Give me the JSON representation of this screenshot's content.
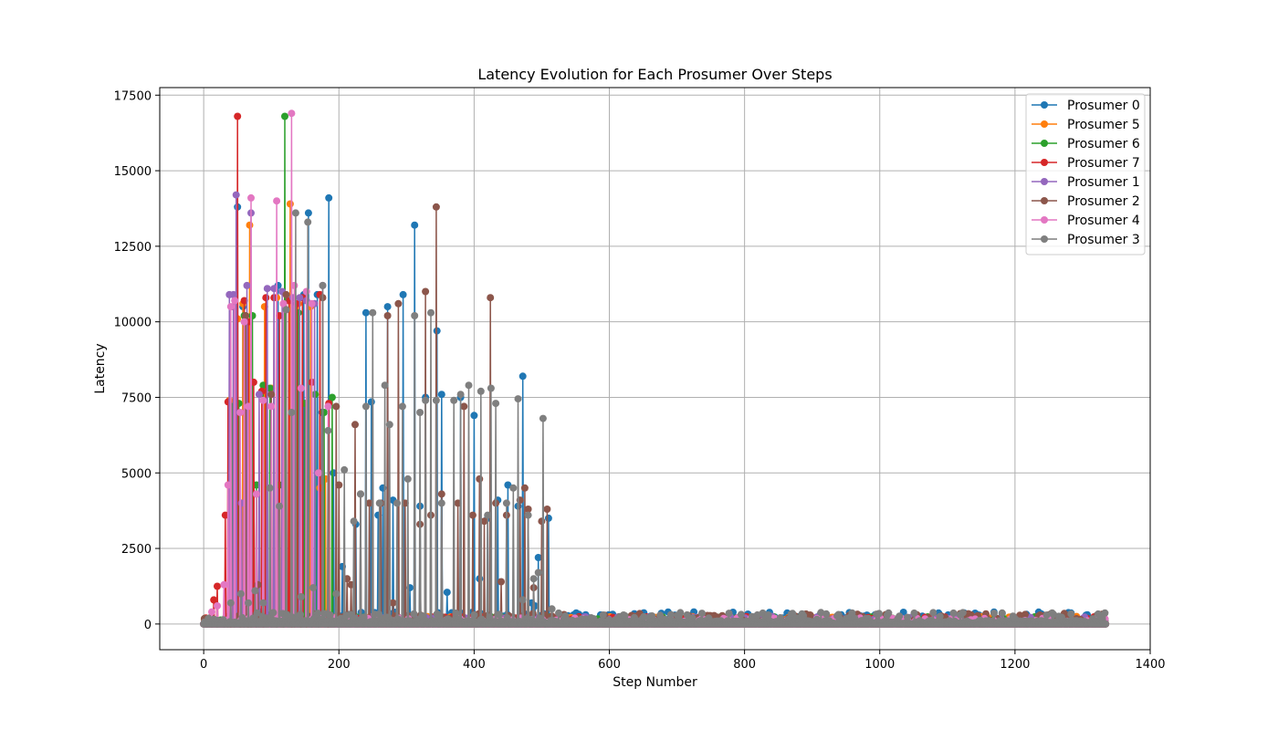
{
  "chart_data": {
    "type": "line",
    "title": "Latency Evolution for Each Prosumer Over Steps",
    "xlabel": "Step Number",
    "ylabel": "Latency",
    "xlim": [
      -65,
      1400
    ],
    "ylim": [
      -850,
      17750
    ],
    "xticks": [
      0,
      200,
      400,
      600,
      800,
      1000,
      1200,
      1400
    ],
    "yticks": [
      0,
      2500,
      5000,
      7500,
      10000,
      12500,
      15000,
      17500
    ],
    "grid": true,
    "legend_position": "top-right",
    "n_steps": 1335,
    "series": [
      {
        "name": "Prosumer 0",
        "color": "#1f77b4",
        "peaks": [
          [
            50,
            13800
          ],
          [
            58,
            10500
          ],
          [
            62,
            7300
          ],
          [
            110,
            11200
          ],
          [
            130,
            7700
          ],
          [
            148,
            10900
          ],
          [
            155,
            13600
          ],
          [
            168,
            10900
          ],
          [
            175,
            7000
          ],
          [
            185,
            14100
          ],
          [
            192,
            5000
          ],
          [
            205,
            1900
          ],
          [
            225,
            3300
          ],
          [
            240,
            10300
          ],
          [
            248,
            7350
          ],
          [
            258,
            3600
          ],
          [
            265,
            4500
          ],
          [
            272,
            10500
          ],
          [
            280,
            4100
          ],
          [
            295,
            10900
          ],
          [
            305,
            1200
          ],
          [
            312,
            13200
          ],
          [
            320,
            3900
          ],
          [
            328,
            7500
          ],
          [
            345,
            9700
          ],
          [
            352,
            7600
          ],
          [
            360,
            1050
          ],
          [
            380,
            7500
          ],
          [
            400,
            6900
          ],
          [
            408,
            1500
          ],
          [
            420,
            3500
          ],
          [
            435,
            4100
          ],
          [
            450,
            4600
          ],
          [
            465,
            3900
          ],
          [
            472,
            8200
          ],
          [
            485,
            700
          ],
          [
            490,
            600
          ],
          [
            495,
            2200
          ],
          [
            510,
            3500
          ]
        ],
        "low_max": 400
      },
      {
        "name": "Prosumer 5",
        "color": "#ff7f0e",
        "peaks": [
          [
            38,
            7400
          ],
          [
            50,
            10100
          ],
          [
            58,
            10600
          ],
          [
            68,
            13200
          ],
          [
            78,
            4300
          ],
          [
            90,
            10500
          ],
          [
            100,
            7800
          ],
          [
            108,
            10800
          ],
          [
            118,
            10600
          ],
          [
            128,
            13900
          ],
          [
            140,
            10600
          ],
          [
            158,
            10500
          ],
          [
            172,
            4500
          ],
          [
            180,
            4800
          ]
        ],
        "low_max": 250
      },
      {
        "name": "Prosumer 6",
        "color": "#2ca02c",
        "peaks": [
          [
            42,
            7200
          ],
          [
            52,
            7300
          ],
          [
            60,
            10200
          ],
          [
            72,
            10200
          ],
          [
            78,
            4600
          ],
          [
            88,
            7900
          ],
          [
            98,
            7800
          ],
          [
            112,
            4600
          ],
          [
            120,
            16800
          ],
          [
            140,
            10300
          ],
          [
            150,
            7300
          ],
          [
            165,
            7600
          ],
          [
            178,
            7000
          ],
          [
            190,
            7500
          ]
        ],
        "low_max": 250
      },
      {
        "name": "Prosumer 7",
        "color": "#d62728",
        "peaks": [
          [
            15,
            800
          ],
          [
            20,
            1250
          ],
          [
            32,
            3600
          ],
          [
            36,
            7350
          ],
          [
            44,
            10500
          ],
          [
            50,
            16800
          ],
          [
            60,
            10700
          ],
          [
            66,
            10000
          ],
          [
            74,
            8000
          ],
          [
            86,
            7700
          ],
          [
            92,
            10800
          ],
          [
            104,
            10800
          ],
          [
            112,
            10200
          ],
          [
            126,
            10700
          ],
          [
            138,
            10600
          ],
          [
            146,
            10800
          ],
          [
            160,
            8000
          ],
          [
            172,
            10900
          ],
          [
            185,
            7300
          ]
        ],
        "low_max": 250
      },
      {
        "name": "Prosumer 1",
        "color": "#9467bd",
        "peaks": [
          [
            38,
            10900
          ],
          [
            44,
            10900
          ],
          [
            48,
            14200
          ],
          [
            56,
            4000
          ],
          [
            64,
            11200
          ],
          [
            70,
            13600
          ],
          [
            82,
            7600
          ],
          [
            94,
            11100
          ],
          [
            104,
            11100
          ],
          [
            116,
            11000
          ],
          [
            132,
            10800
          ],
          [
            142,
            10800
          ],
          [
            152,
            10700
          ],
          [
            164,
            10600
          ],
          [
            176,
            11200
          ]
        ],
        "low_max": 250
      },
      {
        "name": "Prosumer 2",
        "color": "#8c564b",
        "peaks": [
          [
            62,
            10200
          ],
          [
            80,
            1300
          ],
          [
            100,
            7600
          ],
          [
            122,
            10900
          ],
          [
            176,
            10800
          ],
          [
            196,
            7200
          ],
          [
            200,
            4600
          ],
          [
            212,
            1500
          ],
          [
            218,
            1300
          ],
          [
            224,
            6600
          ],
          [
            232,
            4300
          ],
          [
            245,
            4000
          ],
          [
            262,
            4000
          ],
          [
            272,
            10200
          ],
          [
            280,
            700
          ],
          [
            288,
            10600
          ],
          [
            298,
            4000
          ],
          [
            320,
            3300
          ],
          [
            328,
            11000
          ],
          [
            336,
            3600
          ],
          [
            344,
            13800
          ],
          [
            352,
            4300
          ],
          [
            376,
            4000
          ],
          [
            385,
            7200
          ],
          [
            398,
            3600
          ],
          [
            408,
            4800
          ],
          [
            415,
            3400
          ],
          [
            424,
            10800
          ],
          [
            432,
            4000
          ],
          [
            440,
            1400
          ],
          [
            448,
            3600
          ],
          [
            468,
            4100
          ],
          [
            475,
            4500
          ],
          [
            480,
            3800
          ],
          [
            488,
            1200
          ],
          [
            500,
            3400
          ],
          [
            508,
            3800
          ]
        ],
        "low_max": 350
      },
      {
        "name": "Prosumer 4",
        "color": "#e377c2",
        "peaks": [
          [
            12,
            400
          ],
          [
            20,
            600
          ],
          [
            30,
            1300
          ],
          [
            36,
            4600
          ],
          [
            40,
            10500
          ],
          [
            46,
            10700
          ],
          [
            54,
            7000
          ],
          [
            60,
            10000
          ],
          [
            66,
            7200
          ],
          [
            70,
            14100
          ],
          [
            78,
            4300
          ],
          [
            88,
            7400
          ],
          [
            100,
            7200
          ],
          [
            108,
            14000
          ],
          [
            118,
            10600
          ],
          [
            130,
            16900
          ],
          [
            134,
            11200
          ],
          [
            144,
            7800
          ],
          [
            152,
            11000
          ],
          [
            160,
            10600
          ],
          [
            170,
            5000
          ],
          [
            184,
            7200
          ]
        ],
        "low_max": 200
      },
      {
        "name": "Prosumer 3",
        "color": "#7f7f7f",
        "peaks": [
          [
            40,
            700
          ],
          [
            55,
            1000
          ],
          [
            66,
            700
          ],
          [
            76,
            1100
          ],
          [
            88,
            700
          ],
          [
            98,
            4500
          ],
          [
            112,
            3900
          ],
          [
            122,
            10400
          ],
          [
            130,
            7000
          ],
          [
            136,
            13600
          ],
          [
            144,
            900
          ],
          [
            154,
            13300
          ],
          [
            162,
            1200
          ],
          [
            176,
            11200
          ],
          [
            184,
            6400
          ],
          [
            196,
            1000
          ],
          [
            208,
            5100
          ],
          [
            222,
            3400
          ],
          [
            232,
            4300
          ],
          [
            240,
            7200
          ],
          [
            250,
            10300
          ],
          [
            260,
            4000
          ],
          [
            268,
            7900
          ],
          [
            275,
            6600
          ],
          [
            286,
            4000
          ],
          [
            294,
            7200
          ],
          [
            302,
            4800
          ],
          [
            312,
            10200
          ],
          [
            320,
            7000
          ],
          [
            328,
            7400
          ],
          [
            336,
            10300
          ],
          [
            344,
            7400
          ],
          [
            352,
            4000
          ],
          [
            370,
            7400
          ],
          [
            380,
            7600
          ],
          [
            392,
            7900
          ],
          [
            400,
            300
          ],
          [
            410,
            7700
          ],
          [
            420,
            3600
          ],
          [
            425,
            7800
          ],
          [
            432,
            7300
          ],
          [
            448,
            4000
          ],
          [
            458,
            4500
          ],
          [
            465,
            7450
          ],
          [
            472,
            800
          ],
          [
            480,
            3600
          ],
          [
            488,
            1500
          ],
          [
            495,
            1700
          ],
          [
            502,
            6800
          ],
          [
            515,
            500
          ]
        ],
        "low_max": 380
      }
    ]
  }
}
